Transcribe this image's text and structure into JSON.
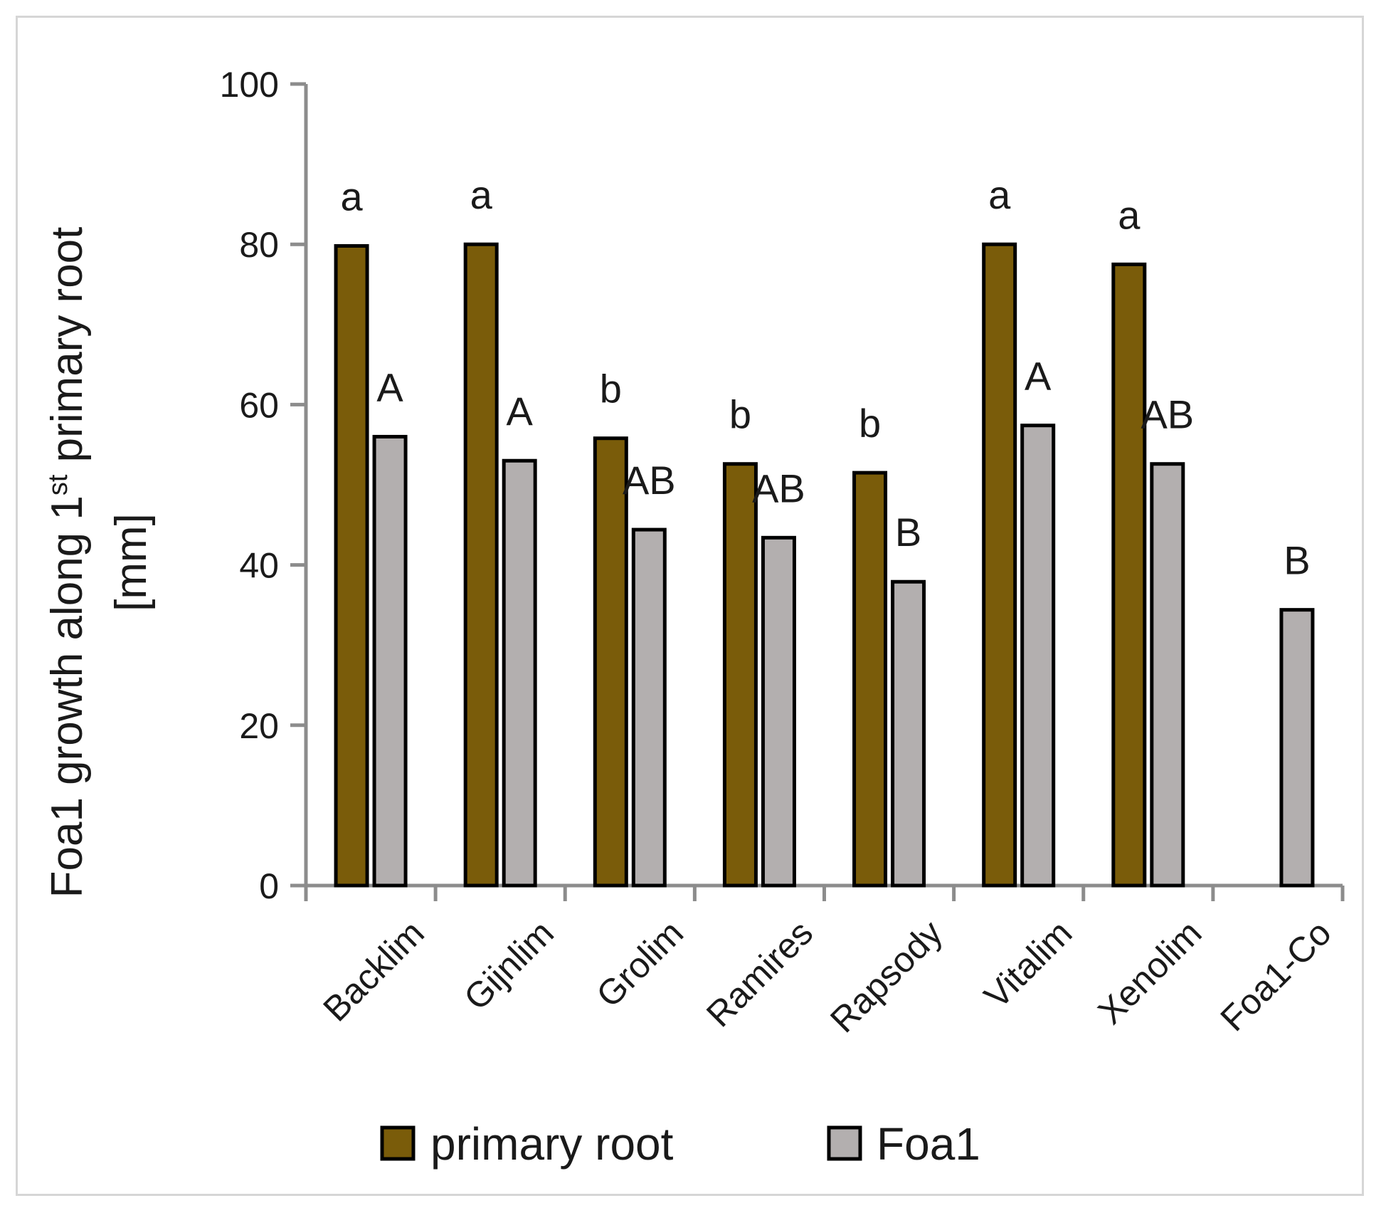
{
  "chart_data": {
    "type": "bar",
    "title": "",
    "xlabel": "",
    "ylabel": {
      "line1_prefix": "Foa1 growth along 1",
      "line1_sup": "st",
      "line1_suffix": " primary root",
      "line2": "[mm]"
    },
    "ylim": [
      0,
      100
    ],
    "yticks": [
      0,
      20,
      40,
      60,
      80,
      100
    ],
    "categories": [
      "Backlim",
      "Gijnlim",
      "Grolim",
      "Ramires",
      "Rapsody",
      "Vitalim",
      "Xenolim",
      "Foa1-Co"
    ],
    "series": [
      {
        "name": "primary root",
        "color": "#7a5c0a",
        "values": [
          79.8,
          80.0,
          55.8,
          52.6,
          51.5,
          80.0,
          77.5,
          null
        ],
        "labels": [
          "a",
          "a",
          "b",
          "b",
          "b",
          "a",
          "a",
          ""
        ]
      },
      {
        "name": "Foa1",
        "color": "#b3afaf",
        "values": [
          56.0,
          53.0,
          44.4,
          43.4,
          37.9,
          57.4,
          52.6,
          34.4
        ],
        "labels": [
          "A",
          "A",
          "AB",
          "AB",
          "B",
          "A",
          "AB",
          "B"
        ]
      }
    ],
    "legend_position": "bottom-center",
    "grid": false
  }
}
